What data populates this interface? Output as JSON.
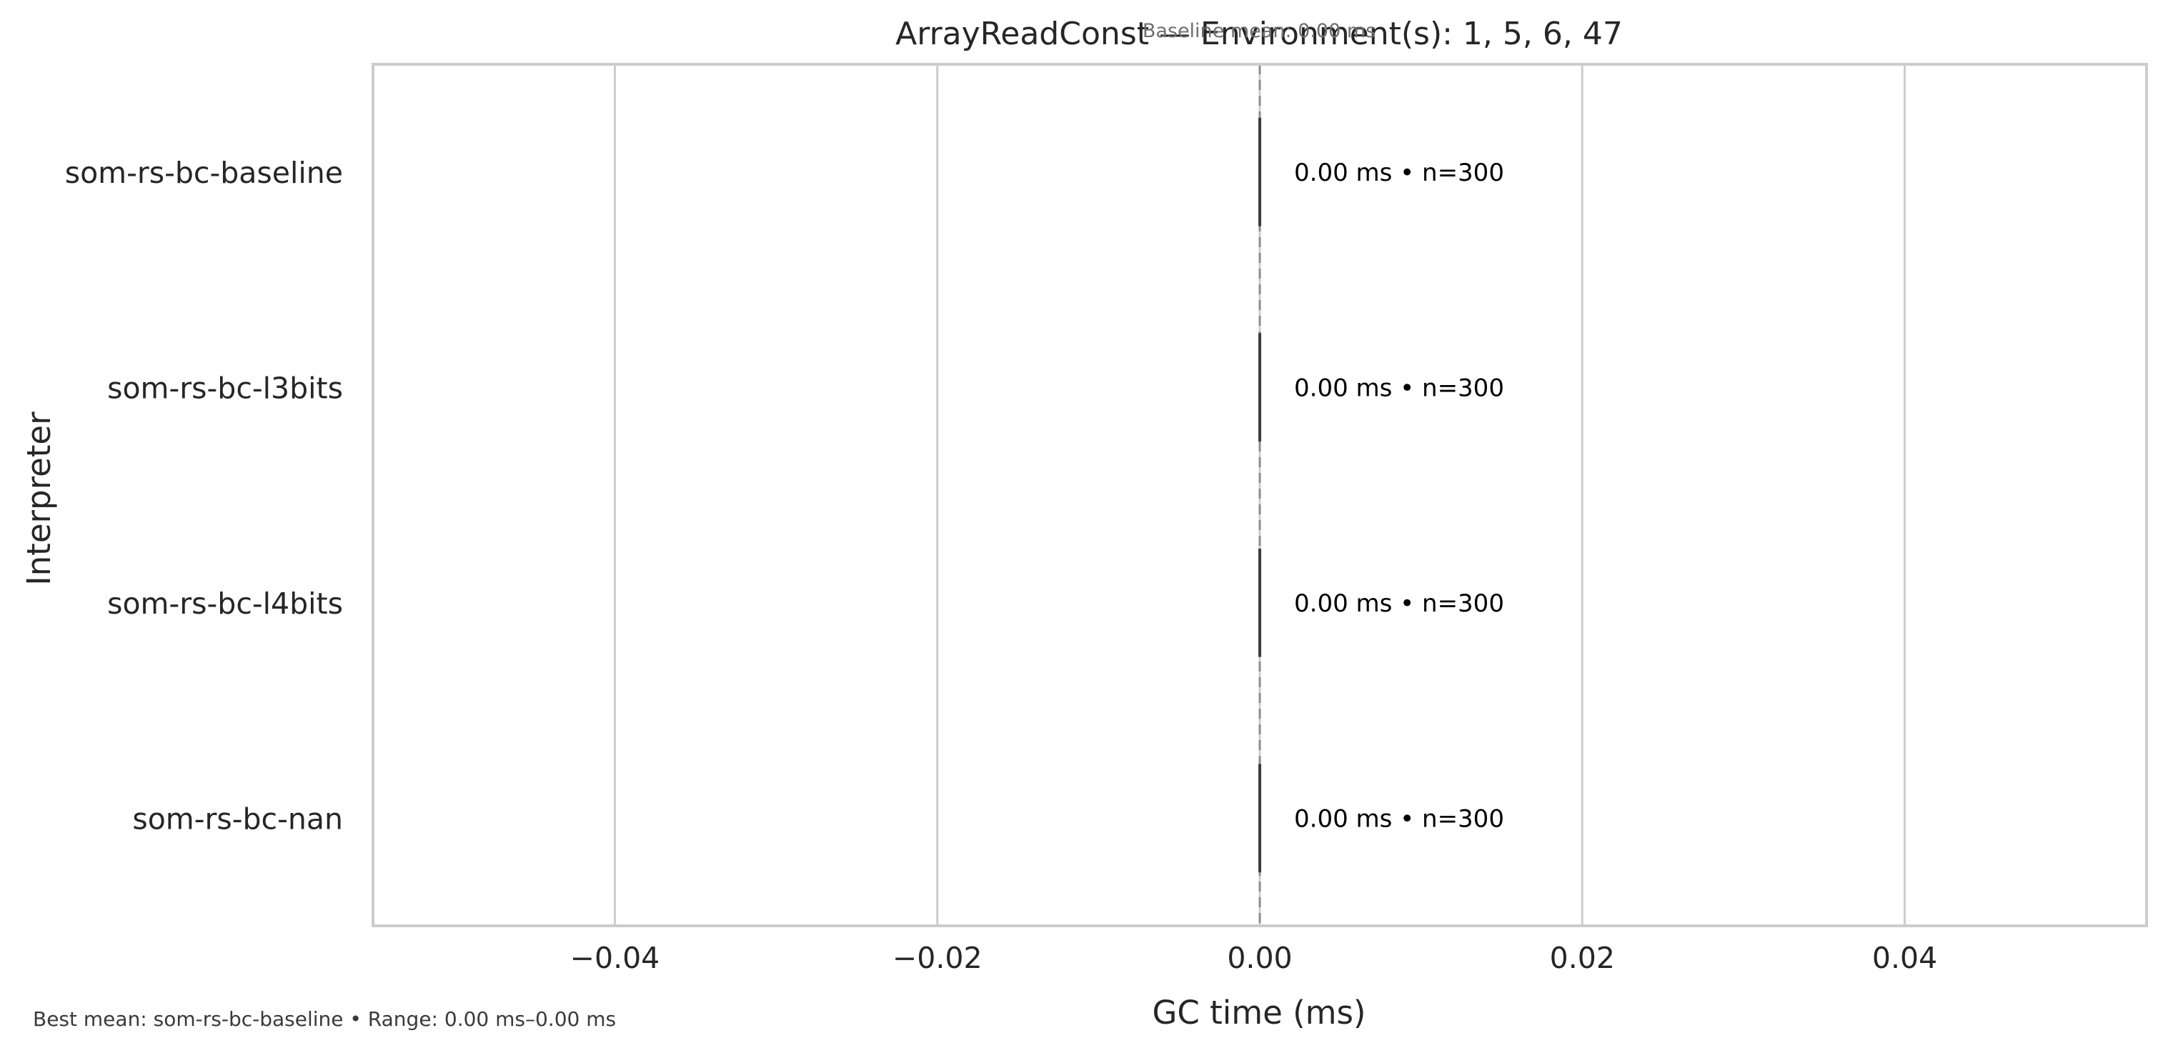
{
  "chart_data": {
    "type": "bar",
    "orientation": "horizontal",
    "title": "ArrayReadConst — Environment(s): 1, 5, 6, 47",
    "subtitle": "Baseline mean: 0.00 ms",
    "xlabel": "GC time (ms)",
    "ylabel": "Interpreter",
    "categories": [
      "som-rs-bc-baseline",
      "som-rs-bc-l3bits",
      "som-rs-bc-l4bits",
      "som-rs-bc-nan"
    ],
    "values": [
      0.0,
      0.0,
      0.0,
      0.0
    ],
    "data_labels": [
      "0.00 ms • n=300",
      "0.00 ms • n=300",
      "0.00 ms • n=300",
      "0.00 ms • n=300"
    ],
    "xlim": [
      -0.055,
      0.055
    ],
    "xticks": [
      -0.04,
      -0.02,
      0.0,
      0.02,
      0.04
    ],
    "xtick_labels": [
      "−0.04",
      "−0.02",
      "0.00",
      "0.02",
      "0.04"
    ],
    "baseline_value": 0.0,
    "grid": "vertical",
    "footer": "Best mean: som-rs-bc-baseline • Range: 0.00 ms–0.00 ms",
    "colors": {
      "grid": "#cccccc",
      "frame": "#cccccc",
      "bar_edge": "#3d3d3d",
      "baseline_line": "#8c8c8c",
      "text": "#262626"
    }
  }
}
